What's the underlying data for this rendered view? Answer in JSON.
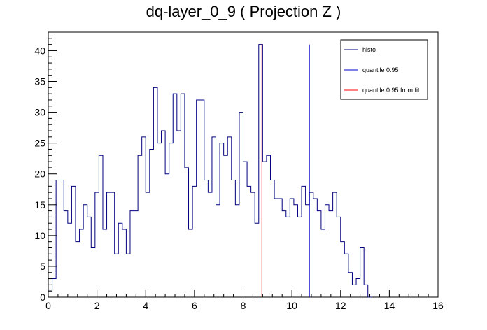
{
  "chart_data": {
    "type": "histogram",
    "title": "dq-layer_0_9 ( Projection Z )",
    "xlabel": "",
    "ylabel": "",
    "xlim": [
      0,
      16
    ],
    "ylim": [
      0,
      43
    ],
    "x_ticks": [
      0,
      2,
      4,
      6,
      8,
      10,
      12,
      14,
      16
    ],
    "y_ticks": [
      0,
      5,
      10,
      15,
      20,
      25,
      30,
      35,
      40
    ],
    "bin_width": 0.16,
    "bin_start": 0,
    "grid": false,
    "legend_position": "top-right",
    "series": [
      {
        "name": "histo",
        "color": "#00007f",
        "values": [
          1,
          3,
          19,
          19,
          14,
          12,
          18,
          9,
          11,
          15,
          13,
          8,
          17,
          23,
          11,
          17,
          17,
          7,
          12,
          11,
          7,
          14,
          14,
          23,
          26,
          17,
          24,
          34,
          25,
          27,
          20,
          25,
          33,
          27,
          33,
          21,
          11,
          18,
          32,
          32,
          19,
          17,
          26,
          15,
          25,
          23,
          26,
          19,
          15,
          30,
          22,
          18,
          17,
          12,
          41,
          22,
          23,
          19,
          16,
          16,
          14,
          13,
          16,
          15,
          13,
          18,
          15,
          17,
          16,
          14,
          11,
          15,
          14,
          17,
          13,
          9,
          7,
          4,
          2,
          3,
          8,
          2,
          0
        ]
      }
    ],
    "vertical_lines": [
      {
        "name": "quantile 0.95",
        "x": 10.72,
        "ymax": 41,
        "color": "#0000c8"
      },
      {
        "name": "quantile 0.95 from fit",
        "x": 8.77,
        "ymax": 41,
        "color": "#ff0000"
      }
    ]
  }
}
